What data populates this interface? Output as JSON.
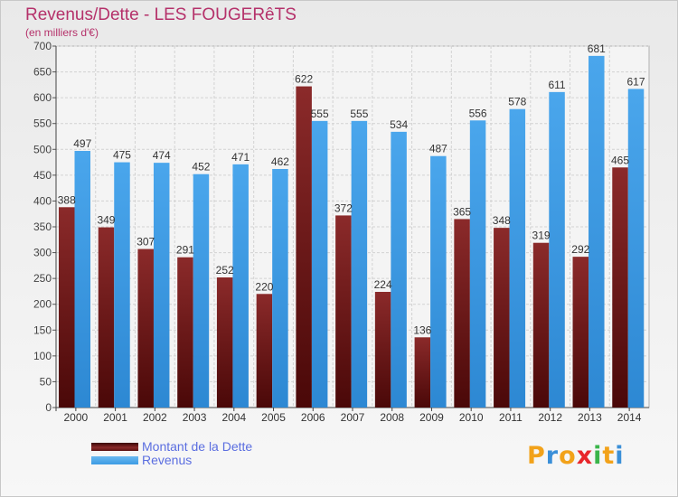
{
  "title": "Revenus/Dette - LES FOUGERêTS",
  "subtitle": "(en milliers d'€)",
  "chart_data": {
    "type": "bar",
    "categories": [
      "2000",
      "2001",
      "2002",
      "2003",
      "2004",
      "2005",
      "2006",
      "2007",
      "2008",
      "2009",
      "2010",
      "2011",
      "2012",
      "2013",
      "2014"
    ],
    "series": [
      {
        "name": "Montant de la Dette",
        "values": [
          388,
          349,
          307,
          291,
          252,
          220,
          622,
          372,
          224,
          136,
          365,
          348,
          319,
          292,
          465
        ],
        "color": "#7a1a1a"
      },
      {
        "name": "Revenus",
        "values": [
          497,
          475,
          474,
          452,
          471,
          462,
          555,
          555,
          534,
          487,
          556,
          578,
          611,
          681,
          617
        ],
        "color": "#3d9be3"
      }
    ],
    "ylim": [
      0,
      700
    ],
    "yticks": [
      0,
      50,
      100,
      150,
      200,
      250,
      300,
      350,
      400,
      450,
      500,
      550,
      600,
      650,
      700
    ],
    "grid": true,
    "legend_position": "bottom-left"
  },
  "legend": [
    {
      "label": "Montant de la Dette",
      "color": "#7a1a1a"
    },
    {
      "label": "Revenus",
      "color": "#3d9be3"
    }
  ],
  "logo": {
    "letters": [
      "P",
      "r",
      "o",
      "x",
      "i",
      "t",
      "i"
    ],
    "colors": [
      "#f2a21a",
      "#3a8fd8",
      "#f2a21a",
      "#e8262a",
      "#3ab54a",
      "#f2a21a",
      "#3a8fd8"
    ]
  }
}
